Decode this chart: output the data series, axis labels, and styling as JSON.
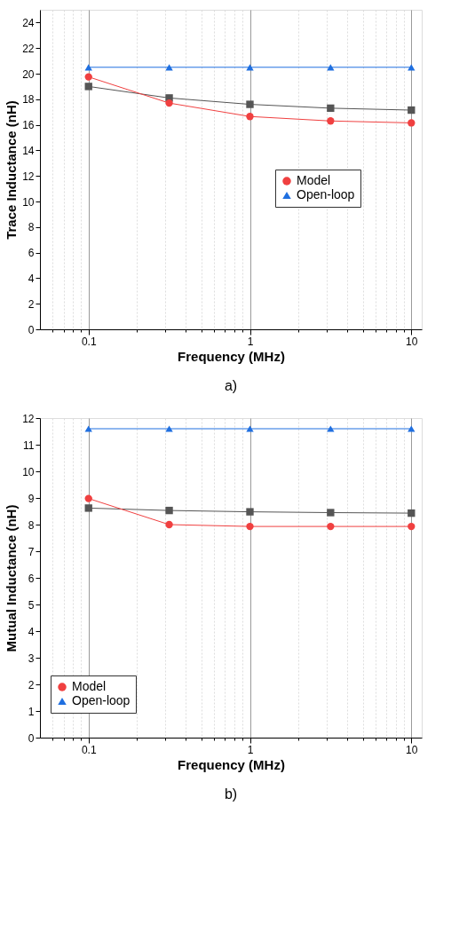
{
  "chart_data": [
    {
      "type": "line",
      "xlabel": "Frequency (MHz)",
      "ylabel": "Trace Inductance (nH)",
      "annotations": [
        "a)"
      ],
      "log": "x",
      "grid": "x",
      "legend": "right",
      "line_style": "solid",
      "x": [
        0.1,
        0.316,
        1,
        3.16,
        10
      ],
      "xlim": [
        0.05,
        11.6
      ],
      "ylim": [
        0,
        25
      ],
      "xticks": [
        {
          "value": 0.06,
          "label": null
        },
        {
          "value": 0.07,
          "label": null
        },
        {
          "value": 0.08,
          "label": null
        },
        {
          "value": 0.09,
          "label": null
        },
        0.1,
        {
          "value": 0.2,
          "label": null
        },
        {
          "value": 0.3,
          "label": null
        },
        {
          "value": 0.4,
          "label": null
        },
        {
          "value": 0.5,
          "label": null
        },
        {
          "value": 0.6,
          "label": null
        },
        {
          "value": 0.7,
          "label": null
        },
        {
          "value": 0.8,
          "label": null
        },
        {
          "value": 0.9,
          "label": null
        },
        1,
        {
          "value": 2,
          "label": null
        },
        {
          "value": 3,
          "label": null
        },
        {
          "value": 4,
          "label": null
        },
        {
          "value": 5,
          "label": null
        },
        {
          "value": 6,
          "label": null
        },
        {
          "value": 7,
          "label": null
        },
        {
          "value": 8,
          "label": null
        },
        {
          "value": 9,
          "label": null
        },
        10
      ],
      "yticks": [
        0,
        2,
        4,
        6,
        8,
        10,
        12,
        14,
        16,
        18,
        20,
        22,
        24
      ],
      "series": [
        {
          "color": "#555555",
          "marker": "square",
          "values": [
            19.0,
            18.1,
            17.6,
            17.3,
            17.15
          ]
        },
        {
          "name": "Model",
          "color": "#f04040",
          "marker": "circle",
          "values": [
            19.75,
            17.7,
            16.65,
            16.3,
            16.15
          ]
        },
        {
          "name": "Open-loop",
          "color": "#1f6fe0",
          "marker": "triangle",
          "values": [
            20.5,
            20.5,
            20.5,
            20.5,
            20.5
          ]
        }
      ]
    },
    {
      "type": "line",
      "xlabel": "Frequency (MHz)",
      "ylabel": "Mutual Inductance (nH)",
      "annotations": [
        "b)"
      ],
      "log": "x",
      "grid": "x",
      "legend": "bottom left",
      "line_style": "solid",
      "x": [
        0.1,
        0.316,
        1,
        3.16,
        10
      ],
      "xlim": [
        0.05,
        11.6
      ],
      "ylim": [
        0,
        12
      ],
      "xticks": [
        {
          "value": 0.06,
          "label": null
        },
        {
          "value": 0.07,
          "label": null
        },
        {
          "value": 0.08,
          "label": null
        },
        {
          "value": 0.09,
          "label": null
        },
        0.1,
        {
          "value": 0.2,
          "label": null
        },
        {
          "value": 0.3,
          "label": null
        },
        {
          "value": 0.4,
          "label": null
        },
        {
          "value": 0.5,
          "label": null
        },
        {
          "value": 0.6,
          "label": null
        },
        {
          "value": 0.7,
          "label": null
        },
        {
          "value": 0.8,
          "label": null
        },
        {
          "value": 0.9,
          "label": null
        },
        1,
        {
          "value": 2,
          "label": null
        },
        {
          "value": 3,
          "label": null
        },
        {
          "value": 4,
          "label": null
        },
        {
          "value": 5,
          "label": null
        },
        {
          "value": 6,
          "label": null
        },
        {
          "value": 7,
          "label": null
        },
        {
          "value": 8,
          "label": null
        },
        {
          "value": 9,
          "label": null
        },
        10
      ],
      "yticks": [
        0,
        1,
        2,
        3,
        4,
        5,
        6,
        7,
        8,
        9,
        10,
        11,
        12
      ],
      "series": [
        {
          "color": "#555555",
          "marker": "square",
          "values": [
            8.62,
            8.53,
            8.48,
            8.45,
            8.43
          ]
        },
        {
          "name": "Model",
          "color": "#f04040",
          "marker": "circle",
          "values": [
            8.98,
            8.0,
            7.93,
            7.93,
            7.93
          ]
        },
        {
          "name": "Open-loop",
          "color": "#1f6fe0",
          "marker": "triangle",
          "values": [
            11.6,
            11.6,
            11.6,
            11.6,
            11.6
          ]
        }
      ]
    }
  ]
}
